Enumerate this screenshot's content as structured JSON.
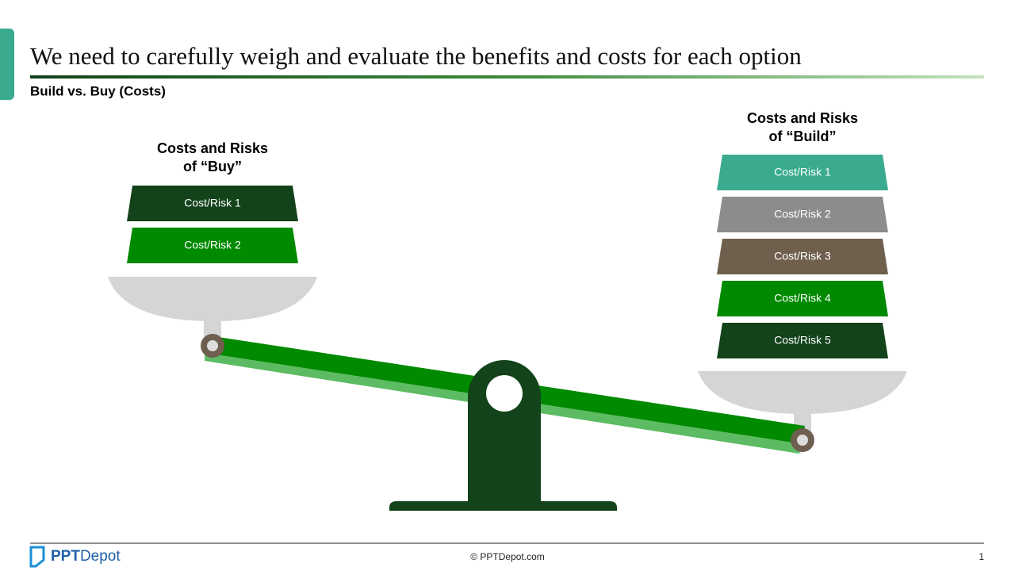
{
  "header": {
    "title": "We need to carefully weigh and evaluate the benefits and costs for each option",
    "subtitle": "Build vs. Buy (Costs)"
  },
  "left_pan": {
    "heading": [
      "Costs and Risks",
      "of “Buy”"
    ],
    "items": [
      "Cost/Risk 1",
      "Cost/Risk 2"
    ]
  },
  "right_pan": {
    "heading": [
      "Costs and Risks",
      "of “Build”"
    ],
    "items": [
      "Cost/Risk 1",
      "Cost/Risk 2",
      "Cost/Risk 3",
      "Cost/Risk 4",
      "Cost/Risk 5"
    ]
  },
  "footer": {
    "logo_bold": "PPT",
    "logo_light": "Depot",
    "copyright": "© PPTDepot.com",
    "page_number": "1"
  }
}
